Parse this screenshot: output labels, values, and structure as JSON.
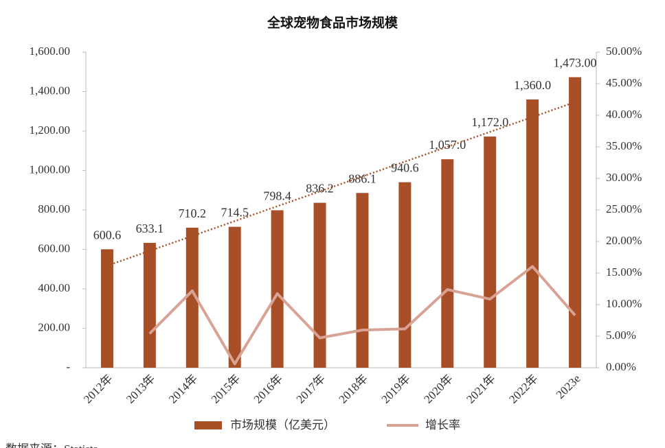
{
  "chart_data": {
    "type": "bar_line",
    "title": "全球宠物食品市场规模",
    "categories": [
      "2012年",
      "2013年",
      "2014年",
      "2015年",
      "2016年",
      "2017年",
      "2018年",
      "2019年",
      "2020年",
      "2021年",
      "2022年",
      "2023e"
    ],
    "series": [
      {
        "name": "市场规模（亿美元）",
        "type": "bar",
        "color": "#a84f27",
        "values": [
          600.6,
          633.1,
          710.2,
          714.5,
          798.4,
          836.2,
          886.1,
          940.6,
          1057.0,
          1172.0,
          1360.0,
          1473.0
        ],
        "value_labels": [
          "600.6",
          "633.1",
          "710.2",
          "714.5",
          "798.4",
          "836.2",
          "886.1",
          "940.6",
          "1,057.0",
          "1,172.0",
          "1,360.0",
          "1,473.00"
        ]
      },
      {
        "name": "增长率",
        "type": "line",
        "axis": "y2",
        "color": "#d8a394",
        "values": [
          null,
          5.41,
          12.18,
          0.61,
          11.74,
          4.73,
          5.97,
          6.15,
          12.38,
          10.88,
          16.04,
          8.31
        ]
      }
    ],
    "trendline": {
      "series": 0,
      "kind": "linear",
      "color": "#a84f27"
    },
    "ylim": [
      0,
      1600
    ],
    "yticks": [
      {
        "value": 0,
        "label": "-"
      },
      {
        "value": 200,
        "label": "200.00"
      },
      {
        "value": 400,
        "label": "400.00"
      },
      {
        "value": 600,
        "label": "600.00"
      },
      {
        "value": 800,
        "label": "800.00"
      },
      {
        "value": 1000,
        "label": "1,000.00"
      },
      {
        "value": 1200,
        "label": "1,200.00"
      },
      {
        "value": 1400,
        "label": "1,400.00"
      },
      {
        "value": 1600,
        "label": "1,600.00"
      }
    ],
    "y2lim": [
      0,
      50
    ],
    "y2ticks": [
      {
        "value": 0,
        "label": "0.00%"
      },
      {
        "value": 5,
        "label": "5.00%"
      },
      {
        "value": 10,
        "label": "10.00%"
      },
      {
        "value": 15,
        "label": "15.00%"
      },
      {
        "value": 20,
        "label": "20.00%"
      },
      {
        "value": 25,
        "label": "25.00%"
      },
      {
        "value": 30,
        "label": "30.00%"
      },
      {
        "value": 35,
        "label": "35.00%"
      },
      {
        "value": 40,
        "label": "40.00%"
      },
      {
        "value": 45,
        "label": "45.00%"
      },
      {
        "value": 50,
        "label": "50.00%"
      }
    ],
    "source": "数据来源：Statista"
  }
}
